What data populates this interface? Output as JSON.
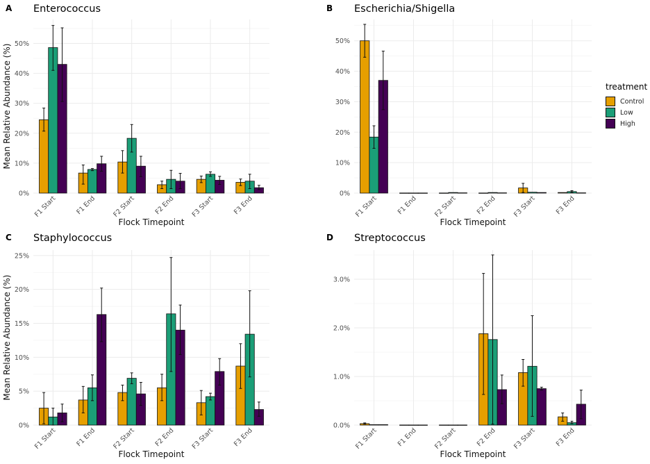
{
  "legend": {
    "title": "treatment",
    "items": [
      {
        "label": "Control",
        "color": "#E69F00"
      },
      {
        "label": "Low",
        "color": "#1B9E77"
      },
      {
        "label": "High",
        "color": "#440154"
      }
    ]
  },
  "chart_data": [
    {
      "type": "bar",
      "panel_label": "A",
      "title": "Enterococcus",
      "xlabel": "Flock Timepoint",
      "ylabel": "Mean Relative Abundance (%)",
      "categories": [
        "F1 Start",
        "F1 End",
        "F2 Start",
        "F2 End",
        "F3 Start",
        "F3 End"
      ],
      "ylim": [
        0,
        58
      ],
      "yticks": [
        0,
        10,
        20,
        30,
        40,
        50
      ],
      "ytick_labels": [
        "0%",
        "10%",
        "20%",
        "30%",
        "40%",
        "50%"
      ],
      "grid": true,
      "series": [
        {
          "name": "Control",
          "values": [
            24.5,
            6.7,
            10.4,
            2.8,
            4.6,
            3.6
          ],
          "err_low": [
            20.7,
            3.0,
            6.7,
            1.5,
            3.5,
            2.5
          ],
          "err_high": [
            28.4,
            9.4,
            14.2,
            4.0,
            5.7,
            4.7
          ]
        },
        {
          "name": "Low",
          "values": [
            48.6,
            7.9,
            18.3,
            4.6,
            6.3,
            4.0
          ],
          "err_low": [
            41.0,
            7.5,
            13.7,
            1.5,
            5.6,
            1.5
          ],
          "err_high": [
            56.0,
            8.2,
            22.9,
            7.6,
            7.1,
            6.3
          ]
        },
        {
          "name": "High",
          "values": [
            43.0,
            9.8,
            9.0,
            4.0,
            4.3,
            1.8
          ],
          "err_low": [
            30.6,
            7.3,
            5.5,
            1.5,
            2.9,
            1.2
          ],
          "err_high": [
            55.2,
            12.3,
            12.3,
            6.6,
            5.6,
            2.6
          ]
        }
      ]
    },
    {
      "type": "bar",
      "panel_label": "B",
      "title": "Escherichia/Shigella",
      "xlabel": "Flock Timepoint",
      "ylabel": "",
      "categories": [
        "F1 Start",
        "F1 End",
        "F2 Start",
        "F2 End",
        "F3 Start",
        "F3 End"
      ],
      "ylim": [
        0,
        57
      ],
      "yticks": [
        0,
        10,
        20,
        30,
        40,
        50
      ],
      "ytick_labels": [
        "0%",
        "10%",
        "20%",
        "30%",
        "40%",
        "50%"
      ],
      "grid": true,
      "series": [
        {
          "name": "Control",
          "values": [
            50.0,
            0.05,
            0.05,
            0.05,
            1.7,
            0.2
          ],
          "err_low": [
            44.6,
            0.05,
            0.05,
            0.05,
            0.2,
            0.1
          ],
          "err_high": [
            55.4,
            0.05,
            0.05,
            0.05,
            3.2,
            0.3
          ]
        },
        {
          "name": "Low",
          "values": [
            18.4,
            0.05,
            0.2,
            0.2,
            0.3,
            0.5
          ],
          "err_low": [
            14.7,
            0.05,
            0.1,
            0.1,
            0.2,
            0.2
          ],
          "err_high": [
            22.1,
            0.05,
            0.3,
            0.3,
            0.4,
            0.8
          ]
        },
        {
          "name": "High",
          "values": [
            37.0,
            0.05,
            0.1,
            0.1,
            0.2,
            0.1
          ],
          "err_low": [
            27.4,
            0.05,
            0.05,
            0.05,
            0.1,
            0.05
          ],
          "err_high": [
            46.6,
            0.05,
            0.15,
            0.15,
            0.3,
            0.15
          ]
        }
      ]
    },
    {
      "type": "bar",
      "panel_label": "C",
      "title": "Staphylococcus",
      "xlabel": "Flock Timepoint",
      "ylabel": "Mean Relative Abundance (%)",
      "categories": [
        "F1 Start",
        "F1 End",
        "F2 Start",
        "F2 End",
        "F3 Start",
        "F3 End"
      ],
      "ylim": [
        0,
        25.8
      ],
      "yticks": [
        0,
        5,
        10,
        15,
        20,
        25
      ],
      "ytick_labels": [
        "0%",
        "5%",
        "10%",
        "15%",
        "20%",
        "25%"
      ],
      "grid": true,
      "series": [
        {
          "name": "Control",
          "values": [
            2.5,
            3.7,
            4.8,
            5.5,
            3.3,
            8.7
          ],
          "err_low": [
            0.2,
            1.8,
            3.6,
            3.6,
            1.5,
            5.4
          ],
          "err_high": [
            4.8,
            5.7,
            5.9,
            7.5,
            5.1,
            12.0
          ]
        },
        {
          "name": "Low",
          "values": [
            1.2,
            5.5,
            6.9,
            16.4,
            4.2,
            13.4
          ],
          "err_low": [
            0.0,
            3.6,
            6.1,
            7.9,
            3.7,
            7.1
          ],
          "err_high": [
            2.5,
            7.4,
            7.7,
            24.7,
            4.7,
            19.8
          ]
        },
        {
          "name": "High",
          "values": [
            1.8,
            16.3,
            4.6,
            14.0,
            7.9,
            2.3
          ],
          "err_low": [
            0.5,
            12.3,
            2.9,
            10.4,
            5.9,
            1.3
          ],
          "err_high": [
            3.1,
            20.2,
            6.3,
            17.7,
            9.8,
            3.4
          ]
        }
      ]
    },
    {
      "type": "bar",
      "panel_label": "D",
      "title": "Streptococcus",
      "xlabel": "Flock Timepoint",
      "ylabel": "",
      "categories": [
        "F1 Start",
        "F1 End",
        "F2 Start",
        "F2 End",
        "F3 Start",
        "F3 End"
      ],
      "ylim": [
        0,
        3.6
      ],
      "yticks": [
        0,
        1,
        2,
        3
      ],
      "ytick_labels": [
        "0.0%",
        "1.0%",
        "2.0%",
        "3.0%"
      ],
      "grid": true,
      "series": [
        {
          "name": "Control",
          "values": [
            0.03,
            0.003,
            0.003,
            1.88,
            1.08,
            0.17
          ],
          "err_low": [
            0.02,
            0.003,
            0.003,
            0.63,
            0.8,
            0.08
          ],
          "err_high": [
            0.045,
            0.003,
            0.003,
            3.12,
            1.35,
            0.25
          ]
        },
        {
          "name": "Low",
          "values": [
            0.01,
            0.003,
            0.003,
            1.76,
            1.21,
            0.05
          ],
          "err_low": [
            0.005,
            0.003,
            0.003,
            0.02,
            0.18,
            0.03
          ],
          "err_high": [
            0.015,
            0.003,
            0.003,
            3.5,
            2.25,
            0.08
          ]
        },
        {
          "name": "High",
          "values": [
            0.01,
            0.003,
            0.003,
            0.73,
            0.75,
            0.43
          ],
          "err_low": [
            0.005,
            0.003,
            0.003,
            0.44,
            0.72,
            0.13
          ],
          "err_high": [
            0.015,
            0.003,
            0.003,
            1.03,
            0.78,
            0.72
          ]
        }
      ]
    }
  ]
}
